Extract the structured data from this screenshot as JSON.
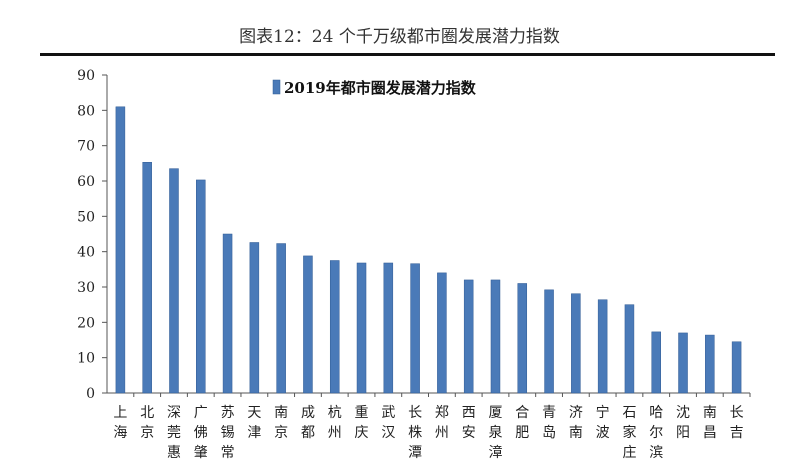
{
  "figure_title": "图表12：24 个千万级都市圈发展潜力指数",
  "chart_data": {
    "type": "bar",
    "title": "",
    "xlabel": "",
    "ylabel": "",
    "ylim": [
      0,
      90
    ],
    "yticks": [
      0,
      10,
      20,
      30,
      40,
      50,
      60,
      70,
      80,
      90
    ],
    "grid": false,
    "legend_position": "top",
    "categories": [
      "上海",
      "北京",
      "深莞惠",
      "广佛肇",
      "苏锡常",
      "天津",
      "南京",
      "成都",
      "杭州",
      "重庆",
      "武汉",
      "长株潭",
      "郑州",
      "西安",
      "厦泉漳",
      "合肥",
      "青岛",
      "济南",
      "宁波",
      "石家庄",
      "哈尔滨",
      "沈阳",
      "南昌",
      "长吉"
    ],
    "series": [
      {
        "name": "2019年都市圈发展潜力指数",
        "color": "#4a7ab8",
        "values": [
          81,
          65.3,
          63.5,
          60.3,
          45,
          42.6,
          42.3,
          38.8,
          37.5,
          36.8,
          36.8,
          36.6,
          34,
          32,
          32,
          31,
          29.2,
          28.1,
          26.4,
          25,
          17.3,
          17,
          16.4,
          14.5
        ]
      }
    ]
  }
}
